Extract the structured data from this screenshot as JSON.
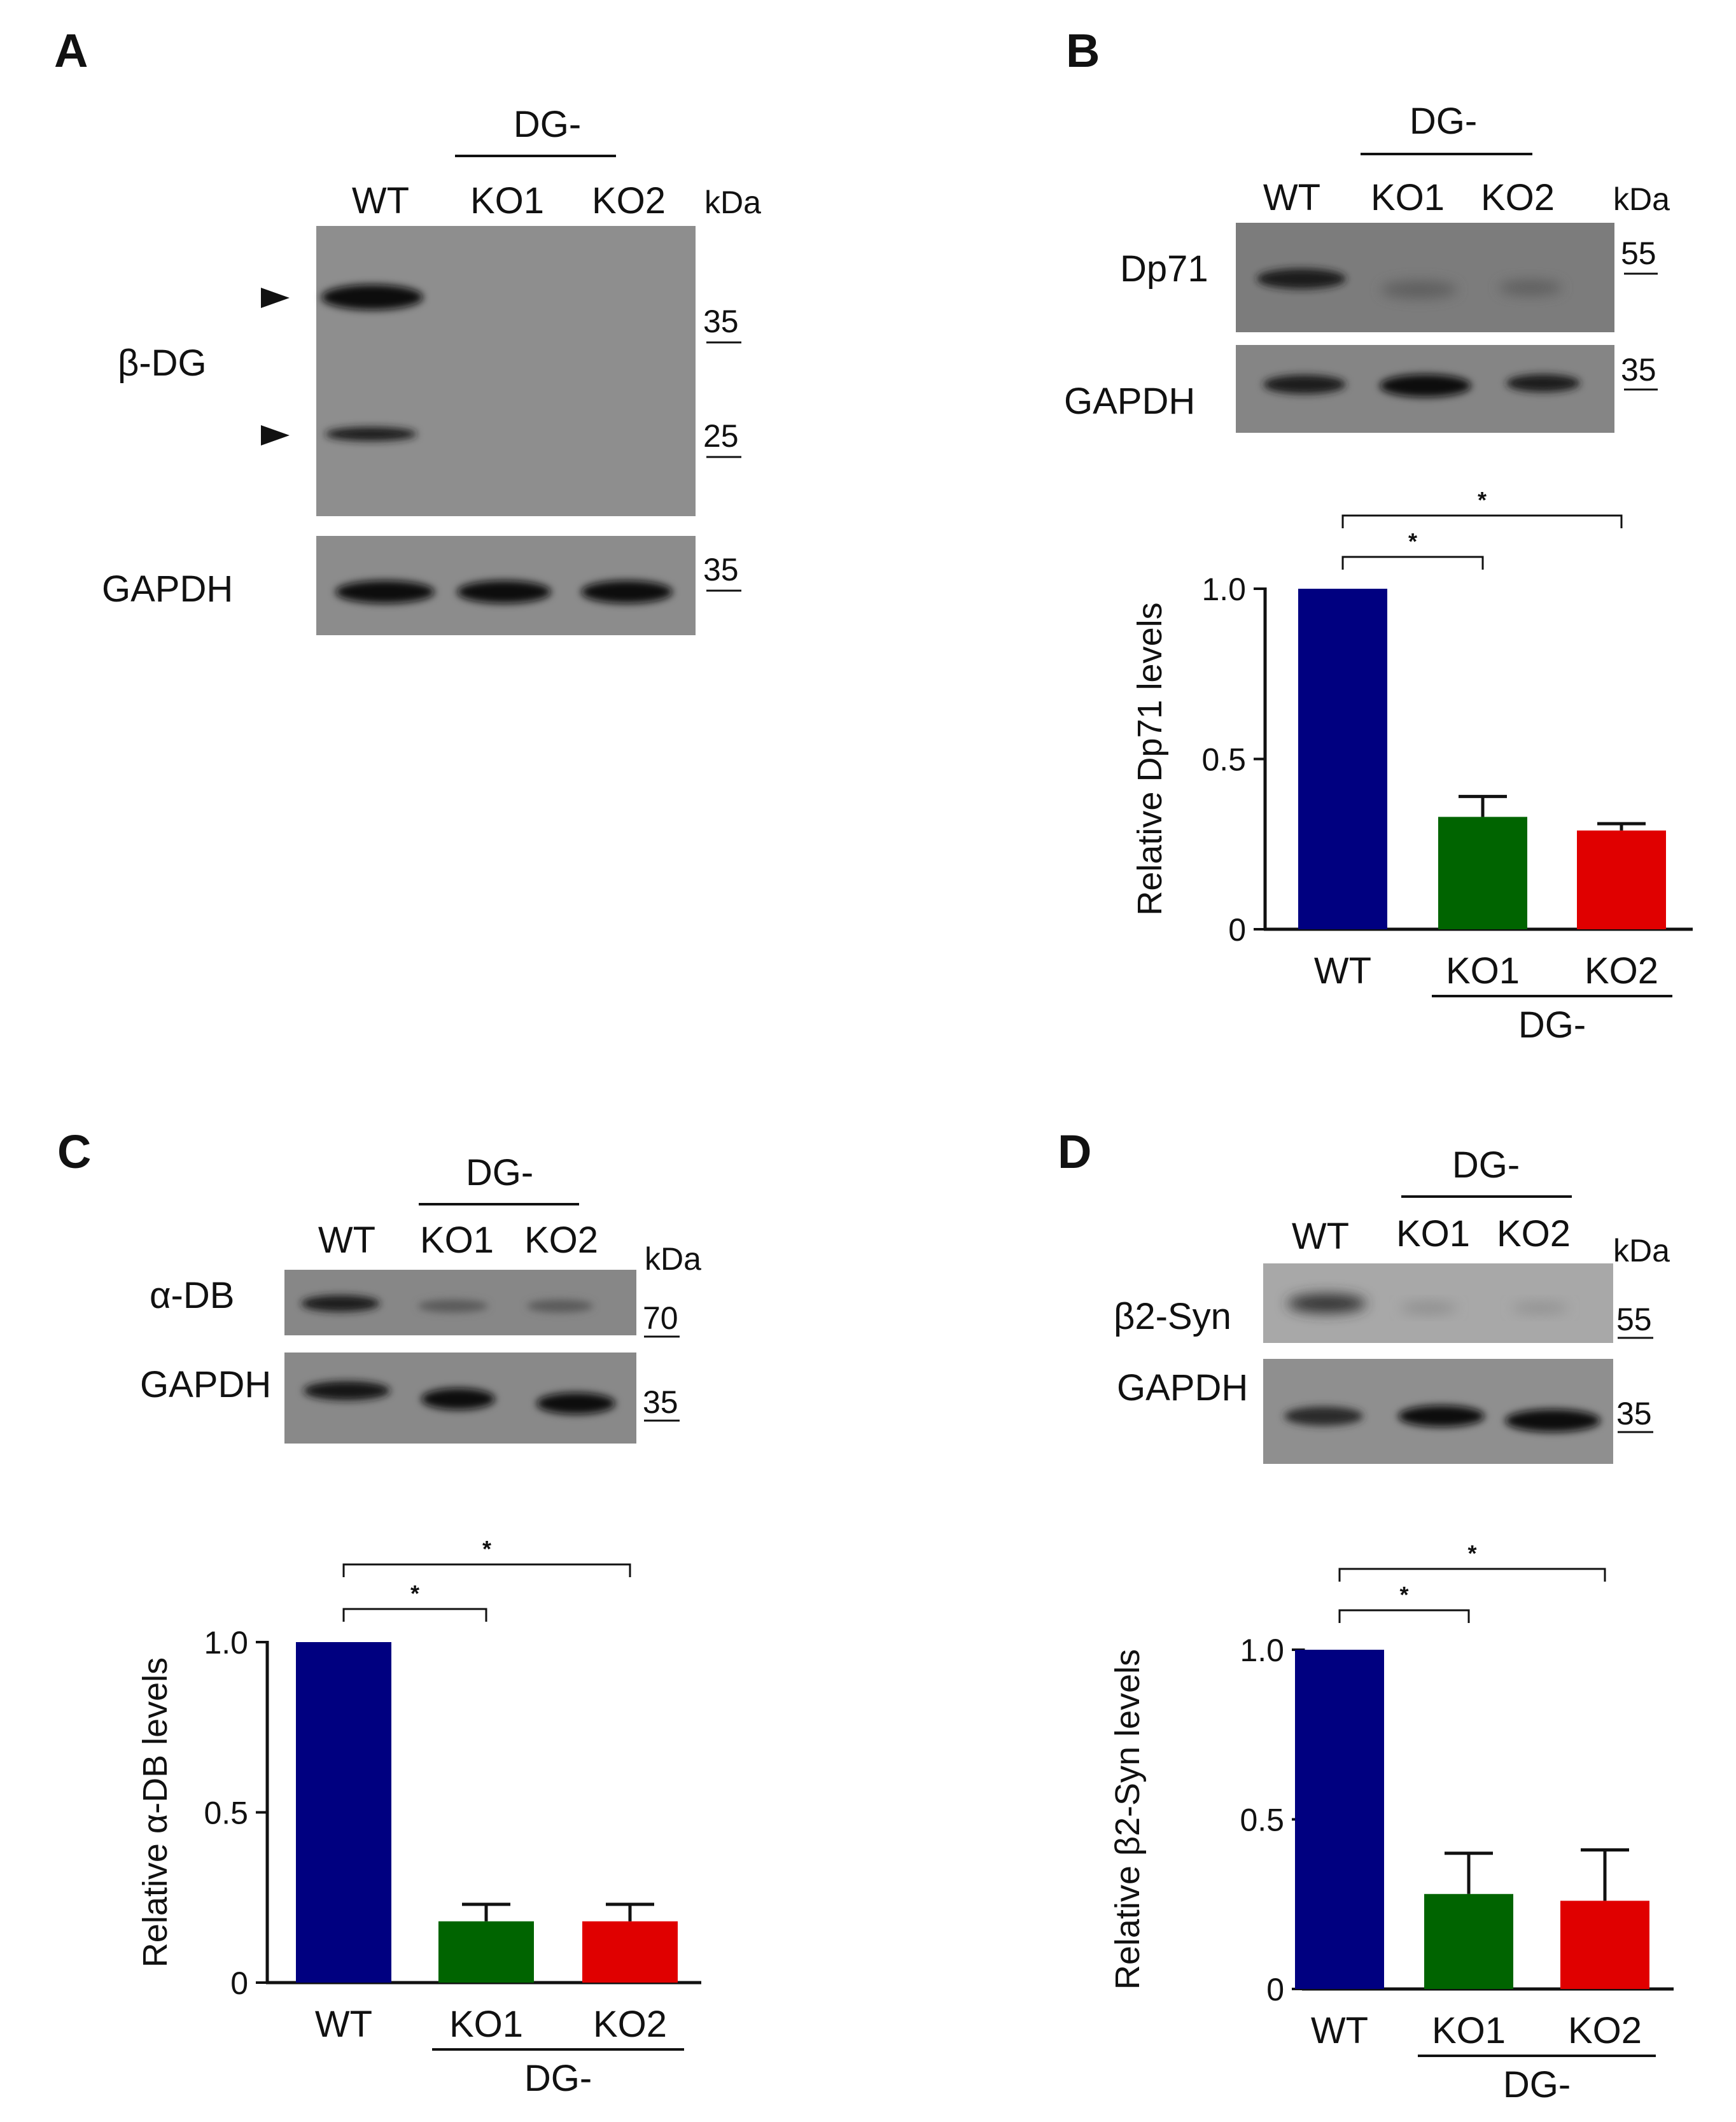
{
  "colors": {
    "wt_bar": "#000080",
    "ko1_bar": "#006400",
    "ko2_bar": "#e00000",
    "blot_bg": "#8c8c8c",
    "band": "#111111"
  },
  "panels": {
    "A": {
      "letter": "A",
      "group_label": "DG-",
      "lanes": [
        "WT",
        "KO1",
        "KO2"
      ],
      "kda_label": "kDa",
      "blots": [
        {
          "name": "β-DG",
          "markers": [
            "35",
            "25"
          ]
        },
        {
          "name": "GAPDH",
          "markers": [
            "35"
          ]
        }
      ]
    },
    "B": {
      "letter": "B",
      "group_label": "DG-",
      "lanes": [
        "WT",
        "KO1",
        "KO2"
      ],
      "kda_label": "kDa",
      "blots": [
        {
          "name": "Dp71",
          "markers": [
            "55"
          ]
        },
        {
          "name": "GAPDH",
          "markers": [
            "35"
          ]
        }
      ]
    },
    "C": {
      "letter": "C",
      "group_label": "DG-",
      "lanes": [
        "WT",
        "KO1",
        "KO2"
      ],
      "kda_label": "kDa",
      "blots": [
        {
          "name": "α-DB",
          "markers": [
            "70"
          ]
        },
        {
          "name": "GAPDH",
          "markers": [
            "35"
          ]
        }
      ]
    },
    "D": {
      "letter": "D",
      "group_label": "DG-",
      "lanes": [
        "WT",
        "KO1",
        "KO2"
      ],
      "kda_label": "kDa",
      "blots": [
        {
          "name": "β2-Syn",
          "markers": [
            "55"
          ]
        },
        {
          "name": "GAPDH",
          "markers": [
            "35"
          ]
        }
      ]
    }
  },
  "chart_data": [
    {
      "panel": "B",
      "type": "bar",
      "categories": [
        "WT",
        "KO1",
        "KO2"
      ],
      "values": [
        1.0,
        0.33,
        0.29
      ],
      "errors": [
        0,
        0.06,
        0.02
      ],
      "ylabel": "Relative Dp71 levels",
      "yticks": [
        "0",
        "0.5",
        "1.0"
      ],
      "ylim": [
        0,
        1.0
      ],
      "group_label": "DG-",
      "significance": [
        {
          "from": "WT",
          "to": "KO1",
          "label": "*"
        },
        {
          "from": "WT",
          "to": "KO2",
          "label": "*"
        }
      ]
    },
    {
      "panel": "C",
      "type": "bar",
      "categories": [
        "WT",
        "KO1",
        "KO2"
      ],
      "values": [
        1.0,
        0.18,
        0.18
      ],
      "errors": [
        0,
        0.05,
        0.05
      ],
      "ylabel": "Relative α-DB levels",
      "yticks": [
        "0",
        "0.5",
        "1.0"
      ],
      "ylim": [
        0,
        1.0
      ],
      "group_label": "DG-",
      "significance": [
        {
          "from": "WT",
          "to": "KO1",
          "label": "*"
        },
        {
          "from": "WT",
          "to": "KO2",
          "label": "*"
        }
      ]
    },
    {
      "panel": "D",
      "type": "bar",
      "categories": [
        "WT",
        "KO1",
        "KO2"
      ],
      "values": [
        1.0,
        0.28,
        0.26
      ],
      "errors": [
        0,
        0.12,
        0.15
      ],
      "ylabel": "Relative β2-Syn levels",
      "yticks": [
        "0",
        "0.5",
        "1.0"
      ],
      "ylim": [
        0,
        1.0
      ],
      "group_label": "DG-",
      "significance": [
        {
          "from": "WT",
          "to": "KO1",
          "label": "*"
        },
        {
          "from": "WT",
          "to": "KO2",
          "label": "*"
        }
      ]
    }
  ]
}
